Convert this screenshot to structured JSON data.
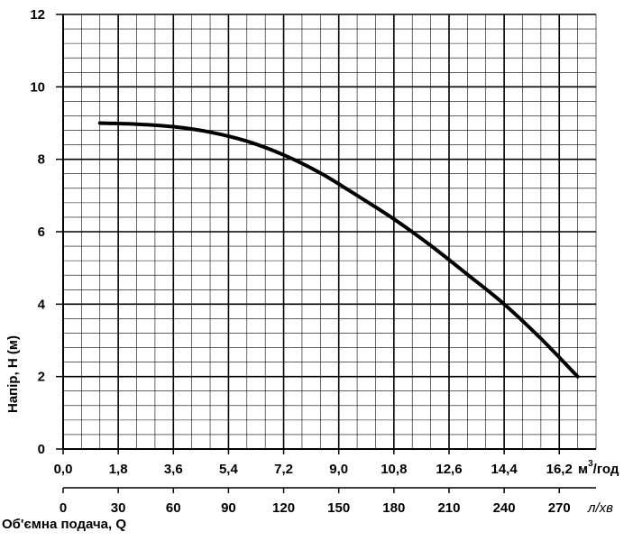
{
  "chart_data": {
    "type": "line",
    "ylabel": "Напір, H (м)",
    "ylim": [
      0,
      12
    ],
    "yticks": [
      "0",
      "2",
      "4",
      "6",
      "8",
      "10",
      "12"
    ],
    "xlim": [
      0,
      17.4
    ],
    "xticks": [
      "0,0",
      "1,8",
      "3,6",
      "5,4",
      "7,2",
      "9,0",
      "10,8",
      "12,6",
      "14,4",
      "16,2"
    ],
    "xunit": "м",
    "xunit_sup": "3",
    "xunit_rest": "/год",
    "x2ticks": [
      "0",
      "30",
      "60",
      "90",
      "120",
      "150",
      "180",
      "210",
      "240",
      "270"
    ],
    "x2unit": "л/хв",
    "x2label": "Об'ємна подача, Q",
    "grid": true,
    "series": [
      {
        "x": [
          1.2,
          2.4,
          3.6,
          4.8,
          6.0,
          7.2,
          8.4,
          9.6,
          10.8,
          12.0,
          13.2,
          14.4,
          15.6,
          16.8
        ],
        "values": [
          9.0,
          8.97,
          8.9,
          8.75,
          8.5,
          8.12,
          7.62,
          7.0,
          6.35,
          5.62,
          4.82,
          4.0,
          3.05,
          2.0
        ]
      }
    ]
  }
}
